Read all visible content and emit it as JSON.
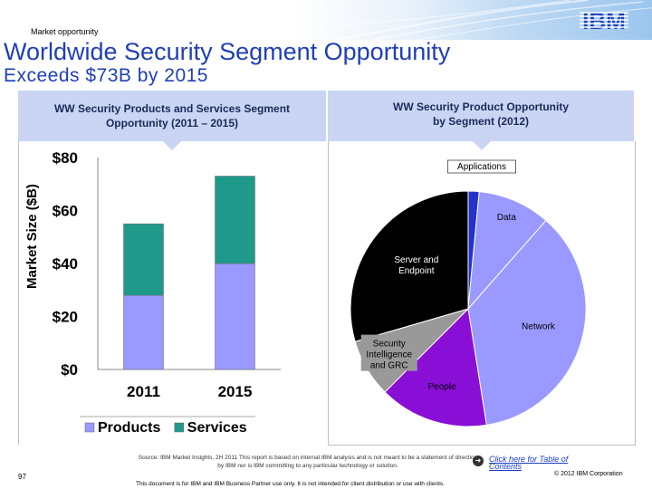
{
  "header": {
    "section": "Market opportunity",
    "logo_text": "IBM"
  },
  "slide": {
    "title_line1": "Worldwide Security Segment Opportunity",
    "title_line2": "Exceeds $73B by 2015"
  },
  "left_panel": {
    "heading": [
      "WW Security Products and Services Segment",
      "Opportunity (2011 – 2015)"
    ]
  },
  "right_panel": {
    "heading": [
      "WW Security Product Opportunity",
      "by Segment (2012)"
    ]
  },
  "colors": {
    "products": "#9999ff",
    "services": "#1f9a8a",
    "title": "#1f3fb8"
  },
  "chart_data": [
    {
      "type": "bar",
      "stacked": true,
      "ylabel": "Market Size ($B)",
      "categories": [
        "2011",
        "2015"
      ],
      "series": [
        {
          "name": "Products",
          "values": [
            28,
            40
          ]
        },
        {
          "name": "Services",
          "values": [
            27,
            33
          ]
        }
      ],
      "yticks": [
        "$0",
        "$20",
        "$40",
        "$60",
        "$80"
      ],
      "ylim": [
        0,
        80
      ],
      "legend": "bottom"
    },
    {
      "type": "pie",
      "categories": [
        "Applications",
        "Data",
        "Network",
        "People",
        "Security Intelligence and GRC",
        "Server and Endpoint"
      ],
      "values": [
        1.5,
        10,
        36,
        15,
        8,
        29.5
      ],
      "colors": [
        "#2233cc",
        "#9999ff",
        "#9999ff",
        "#8a0fd6",
        "#999999",
        "#000000"
      ],
      "label_colors": [
        "#000000",
        "#000000",
        "#000000",
        "#000000",
        "#000000",
        "#ffffff"
      ]
    }
  ],
  "footer": {
    "source": "Source: IBM Market Insights, 2H 2011 This report is based on internal IBM analysis and is not meant to be a statement of direction by IBM nor is IBM committing to any particular technology or solution.",
    "toc_link": "Click here for Table of Contents",
    "page_number": "97",
    "copyright": "© 2012 IBM Corporation",
    "disclaimer": "This document is for IBM and IBM Business Partner use only.  It is not intended for client distribution or use with clients."
  }
}
